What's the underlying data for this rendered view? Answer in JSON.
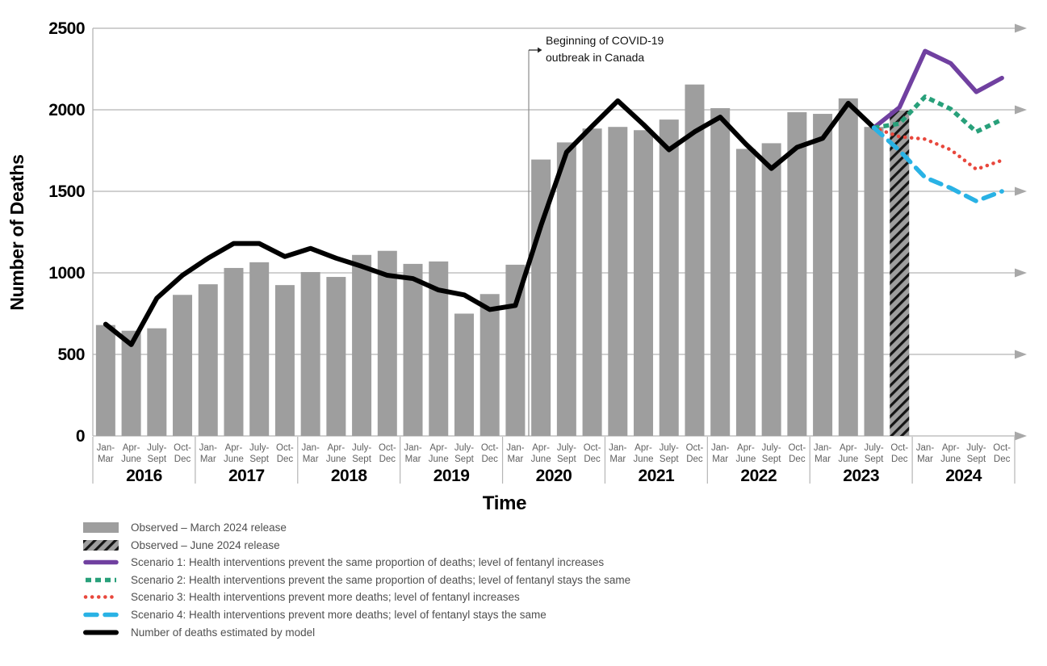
{
  "chart_data": {
    "type": "combo-bar-line",
    "xlabel": "Time",
    "ylabel": "Number of Deaths",
    "ylim": [
      0,
      2500
    ],
    "y_ticks": [
      0,
      500,
      1000,
      1500,
      2000,
      2500
    ],
    "grid": "horizontal-with-right-arrows",
    "years": [
      "2016",
      "2017",
      "2018",
      "2019",
      "2020",
      "2021",
      "2022",
      "2023",
      "2024"
    ],
    "quarter_tick_labels": [
      [
        "Jan-",
        "Mar"
      ],
      [
        "Apr-",
        "June"
      ],
      [
        "July-",
        "Sept"
      ],
      [
        "Oct-",
        "Dec"
      ]
    ],
    "series": [
      {
        "name": "Observed – March 2024 release",
        "type": "bar",
        "style": "solid",
        "color": "#9e9e9e",
        "start_index": 0,
        "values": [
          680,
          645,
          660,
          865,
          930,
          1030,
          1065,
          925,
          1005,
          975,
          1110,
          1135,
          1055,
          1070,
          750,
          870,
          1050,
          1695,
          1800,
          1885,
          1895,
          1875,
          1940,
          2155,
          2010,
          1760,
          1795,
          1985,
          1975,
          2070,
          1895
        ]
      },
      {
        "name": "Observed – June 2024 release",
        "type": "bar",
        "style": "hatched",
        "color": "#9e9e9e",
        "hatch_color": "#141414",
        "start_index": 31,
        "values": [
          1995
        ]
      },
      {
        "name": "Number of deaths estimated by model",
        "type": "line",
        "dash": "solid",
        "color": "#000000",
        "start_index": 0,
        "values": [
          685,
          560,
          845,
          985,
          1090,
          1180,
          1180,
          1100,
          1150,
          1090,
          1040,
          985,
          965,
          895,
          865,
          775,
          800,
          1290,
          1740,
          1900,
          2055,
          1910,
          1755,
          1865,
          1955,
          1790,
          1640,
          1770,
          1825,
          2040,
          1890
        ]
      },
      {
        "name": "Scenario 1: Health interventions prevent the same proportion of deaths; level of fentanyl increases",
        "type": "line",
        "dash": "solid",
        "color": "#7040a0",
        "start_index": 30,
        "values": [
          1890,
          2015,
          2360,
          2285,
          2110,
          2195
        ]
      },
      {
        "name": "Scenario 2: Health interventions prevent the same proportion of deaths; level of fentanyl stays the same",
        "type": "line",
        "dash": "dashed",
        "color": "#28a07a",
        "start_index": 30,
        "values": [
          1890,
          1915,
          2080,
          2005,
          1865,
          1940
        ]
      },
      {
        "name": "Scenario 3: Health interventions prevent more deaths; level of fentanyl increases",
        "type": "line",
        "dash": "dotted",
        "color": "#e8473c",
        "start_index": 30,
        "values": [
          1890,
          1835,
          1820,
          1755,
          1635,
          1690
        ]
      },
      {
        "name": "Scenario 4: Health interventions prevent more deaths; level of fentanyl stays the same",
        "type": "line",
        "dash": "long-dash",
        "color": "#29b2e5",
        "start_index": 30,
        "values": [
          1890,
          1750,
          1585,
          1520,
          1440,
          1500
        ]
      }
    ],
    "annotation": {
      "text": "Beginning of COVID-19 outbreak in Canada",
      "marker_position": "between 2020 Q1 and 2020 Q2"
    }
  },
  "axes": {
    "y_title": "Number of Deaths",
    "x_title": "Time"
  },
  "annotation": {
    "text": "Beginning of COVID-19 outbreak in Canada"
  },
  "legend": {
    "items": [
      {
        "label": "Observed – March 2024 release",
        "swatch": "bar",
        "color": "#9e9e9e"
      },
      {
        "label": "Observed – June 2024 release",
        "swatch": "hatch",
        "color": "#9e9e9e",
        "hatch_color": "#141414"
      },
      {
        "label": "Scenario 1: Health interventions prevent the same proportion of deaths; level of fentanyl increases",
        "swatch": "line",
        "dash": "solid",
        "color": "#7040a0"
      },
      {
        "label": "Scenario 2: Health interventions prevent the same proportion of deaths; level of fentanyl stays the same",
        "swatch": "line",
        "dash": "dashed",
        "color": "#28a07a"
      },
      {
        "label": "Scenario 3: Health interventions prevent more deaths; level of fentanyl increases",
        "swatch": "line",
        "dash": "dotted",
        "color": "#e8473c"
      },
      {
        "label": "Scenario 4: Health interventions prevent more deaths; level of fentanyl stays the same",
        "swatch": "line",
        "dash": "long-dash",
        "color": "#29b2e5"
      },
      {
        "label": "Number of deaths estimated by model",
        "swatch": "line",
        "dash": "solid",
        "color": "#000000"
      }
    ]
  },
  "colors": {
    "bar_gray": "#9e9e9e",
    "gridline": "#b5b5b5",
    "grid_arrow": "#a8a8a8",
    "quarter_label": "#616161",
    "legend_text": "#4f4f4f",
    "scenario1": "#7040a0",
    "scenario2": "#28a07a",
    "scenario3": "#e8473c",
    "scenario4": "#29b2e5",
    "model_line": "#000000"
  }
}
